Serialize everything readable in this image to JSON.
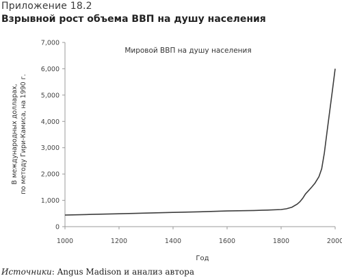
{
  "appendix_label": "Приложение 18.2",
  "heading": "Взрывной рост объема ВВП на душу населения",
  "source": {
    "label": "Источники",
    "text": ": Angus Madison и анализ автора"
  },
  "chart_data": {
    "type": "line",
    "title": "Мировой ВВП на душу населения",
    "xlabel": "Год",
    "ylabel_lines": [
      "В международных долларах,",
      "по методу Гири-Камиса, на 1990 г."
    ],
    "xlim": [
      1000,
      2000
    ],
    "ylim": [
      0,
      7000
    ],
    "x_ticks": [
      1000,
      1200,
      1400,
      1600,
      1800,
      2000
    ],
    "y_ticks": [
      0,
      1000,
      2000,
      3000,
      4000,
      5000,
      6000,
      7000
    ],
    "y_tick_labels": [
      "0",
      "1,000",
      "2,000",
      "3,000",
      "4,000",
      "5,000",
      "6,000",
      "7,000"
    ],
    "grid": false,
    "series": [
      {
        "color": "#3c3c3c",
        "x": [
          1000,
          1100,
          1200,
          1300,
          1400,
          1500,
          1600,
          1700,
          1750,
          1800,
          1820,
          1840,
          1860,
          1870,
          1880,
          1890,
          1900,
          1913,
          1925,
          1940,
          1950,
          1960,
          1970,
          1980,
          1990,
          2000
        ],
        "y": [
          440,
          465,
          490,
          515,
          540,
          565,
          595,
          615,
          630,
          650,
          680,
          740,
          860,
          950,
          1080,
          1240,
          1350,
          1500,
          1650,
          1900,
          2200,
          2800,
          3600,
          4400,
          5200,
          6000
        ]
      }
    ]
  }
}
